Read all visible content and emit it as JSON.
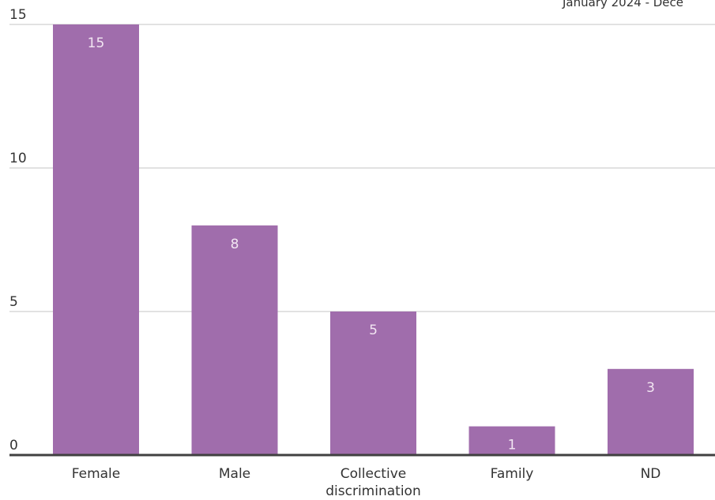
{
  "chart_data": {
    "type": "bar",
    "subtitle": "January 2024 - Dece",
    "categories": [
      "Female",
      "Male",
      "Collective discrimination",
      "Family",
      "ND"
    ],
    "category_lines": [
      [
        "Female"
      ],
      [
        "Male"
      ],
      [
        "Collective",
        "discrimination"
      ],
      [
        "Family"
      ],
      [
        "ND"
      ]
    ],
    "values": [
      15,
      8,
      5,
      1,
      3
    ],
    "value_labels": [
      "15",
      "8",
      "5",
      "1",
      "3"
    ],
    "yticks": [
      0,
      5,
      10,
      15
    ],
    "ytick_labels": [
      "0",
      "5",
      "10",
      "15"
    ],
    "ylim": [
      0,
      15
    ],
    "grid": true,
    "legend": "none",
    "colors": {
      "bar": "#a06dac",
      "grid": "#d9d9d9",
      "axis": "#404040",
      "value_text": "#f2e6f2"
    }
  }
}
